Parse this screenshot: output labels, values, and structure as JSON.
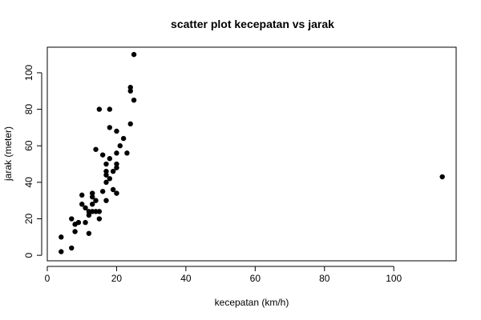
{
  "chart_data": {
    "type": "scatter",
    "title": "scatter plot kecepatan vs jarak",
    "xlabel": "kecepatan (km/h)",
    "ylabel": "jarak (meter)",
    "xlim": [
      0,
      118
    ],
    "ylim": [
      -3,
      114
    ],
    "xticks": [
      0,
      20,
      40,
      60,
      80,
      100
    ],
    "yticks": [
      0,
      20,
      40,
      60,
      80,
      100
    ],
    "grid": false,
    "points": [
      [
        4,
        2
      ],
      [
        4,
        10
      ],
      [
        7,
        4
      ],
      [
        7,
        20
      ],
      [
        8,
        17
      ],
      [
        8,
        13
      ],
      [
        9,
        18
      ],
      [
        10,
        28
      ],
      [
        10,
        33
      ],
      [
        11,
        18
      ],
      [
        11,
        26
      ],
      [
        12,
        12
      ],
      [
        12,
        22
      ],
      [
        12,
        24
      ],
      [
        13,
        24
      ],
      [
        13,
        28
      ],
      [
        13,
        32
      ],
      [
        13,
        34
      ],
      [
        14,
        24
      ],
      [
        14,
        30
      ],
      [
        14,
        58
      ],
      [
        15,
        20
      ],
      [
        15,
        24
      ],
      [
        15,
        80
      ],
      [
        16,
        35
      ],
      [
        16,
        55
      ],
      [
        17,
        30
      ],
      [
        17,
        40
      ],
      [
        17,
        44
      ],
      [
        17,
        46
      ],
      [
        17,
        50
      ],
      [
        18,
        42
      ],
      [
        18,
        53
      ],
      [
        18,
        70
      ],
      [
        18,
        80
      ],
      [
        19,
        36
      ],
      [
        19,
        46
      ],
      [
        20,
        34
      ],
      [
        20,
        48
      ],
      [
        20,
        50
      ],
      [
        20,
        56
      ],
      [
        20,
        68
      ],
      [
        21,
        60
      ],
      [
        22,
        64
      ],
      [
        23,
        56
      ],
      [
        24,
        72
      ],
      [
        24,
        90
      ],
      [
        24,
        92
      ],
      [
        25,
        85
      ],
      [
        25,
        110
      ],
      [
        114,
        43
      ]
    ]
  }
}
